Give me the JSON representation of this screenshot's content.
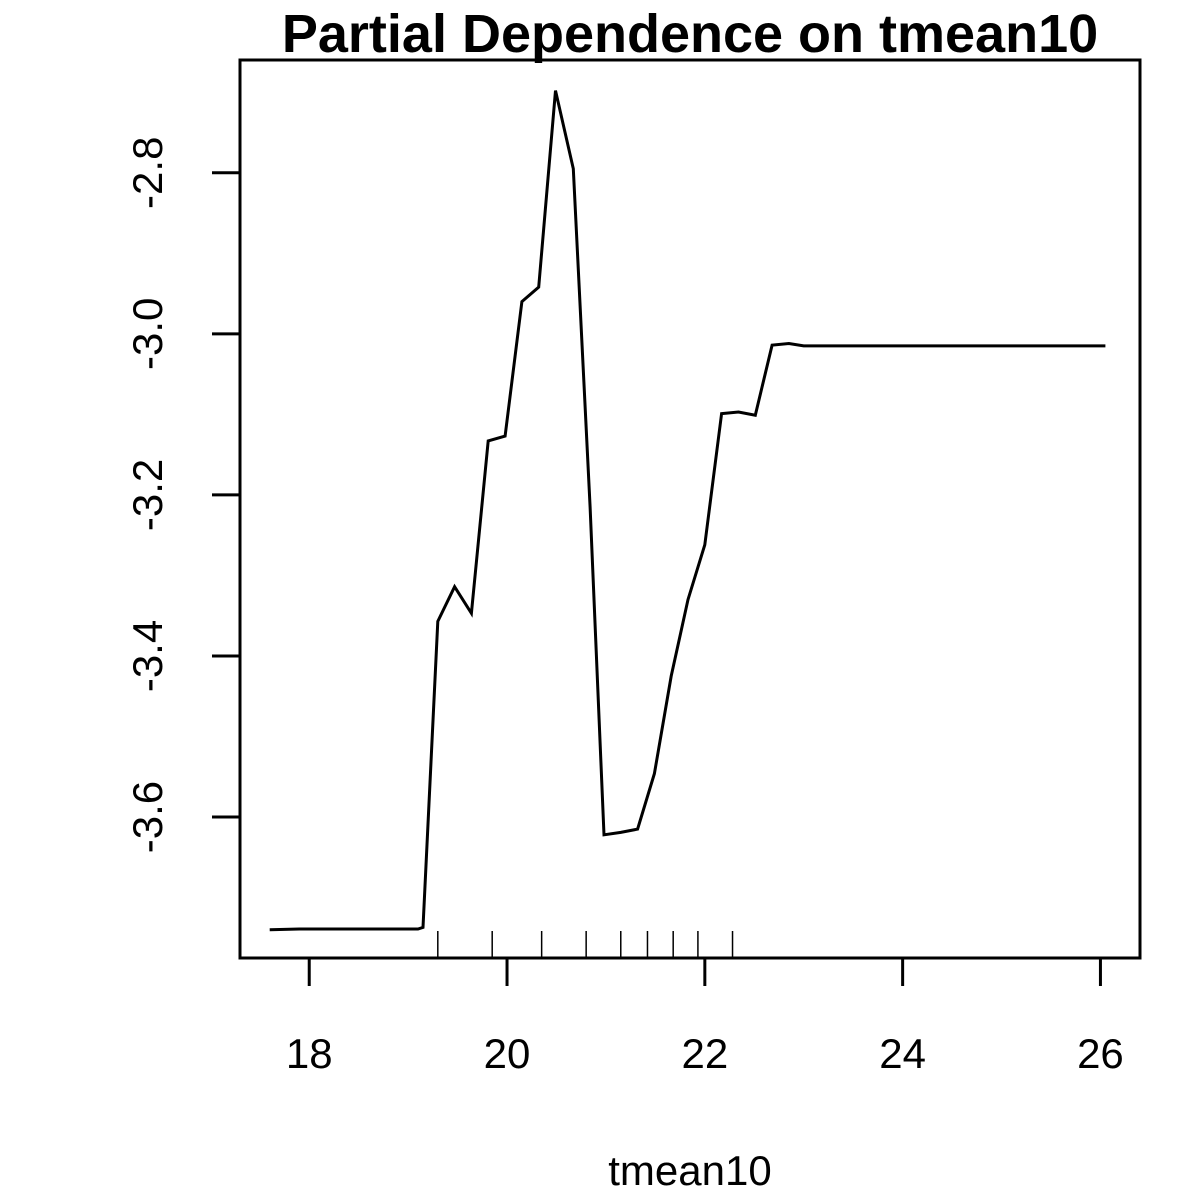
{
  "chart_data": {
    "type": "line",
    "title": "Partial Dependence on tmean10",
    "xlabel": "tmean10",
    "ylabel": "",
    "xlim": [
      17.3,
      26.4
    ],
    "ylim": [
      -3.775,
      -2.66
    ],
    "x_ticks": [
      18,
      20,
      22,
      24,
      26
    ],
    "x_tick_labels": [
      "18",
      "20",
      "22",
      "24",
      "26"
    ],
    "y_ticks": [
      -3.6,
      -3.4,
      -3.2,
      -3.0,
      -2.8
    ],
    "y_tick_labels": [
      "-3.6",
      "-3.4",
      "-3.2",
      "-3.0",
      "-2.8"
    ],
    "grid": false,
    "legend": "none",
    "line_color": "#000000",
    "series": [
      {
        "x": [
          17.6,
          17.9,
          18.5,
          19.1,
          19.15,
          19.3,
          19.47,
          19.64,
          19.81,
          19.98,
          20.15,
          20.32,
          20.49,
          20.67,
          20.84,
          20.98,
          21.15,
          21.32,
          21.49,
          21.66,
          21.83,
          22.0,
          22.17,
          22.34,
          22.51,
          22.68,
          22.85,
          23.0,
          26.05
        ],
        "y": [
          -3.74,
          -3.739,
          -3.739,
          -3.739,
          -3.737,
          -3.357,
          -3.314,
          -3.347,
          -3.133,
          -3.127,
          -2.96,
          -2.942,
          -2.698,
          -2.795,
          -3.215,
          -3.622,
          -3.619,
          -3.615,
          -3.546,
          -3.425,
          -3.33,
          -3.262,
          -3.099,
          -3.097,
          -3.101,
          -3.014,
          -3.012,
          -3.015,
          -3.015
        ]
      }
    ],
    "rug": [
      19.3,
      19.85,
      20.35,
      20.8,
      21.15,
      21.42,
      21.68,
      21.93,
      22.28
    ]
  }
}
